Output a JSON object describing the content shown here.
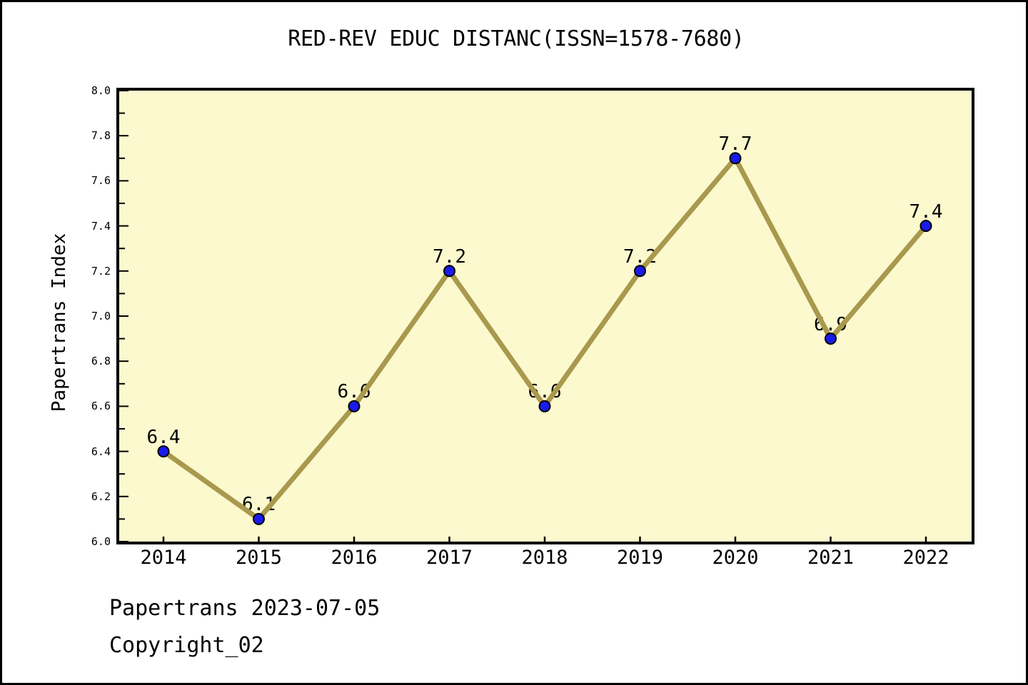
{
  "page": {
    "footer_line1": "Papertrans 2023-07-05",
    "footer_line2": "Copyright_02"
  },
  "chart_data": {
    "type": "line",
    "title": "RED-REV EDUC DISTANC(ISSN=1578-7680)",
    "xlabel": "",
    "ylabel": "Papertrans Index",
    "categories": [
      "2014",
      "2015",
      "2016",
      "2017",
      "2018",
      "2019",
      "2020",
      "2021",
      "2022"
    ],
    "series": [
      {
        "name": "Papertrans Index",
        "values": [
          6.4,
          6.1,
          6.6,
          7.2,
          6.6,
          7.2,
          7.7,
          6.9,
          7.4
        ],
        "point_labels": [
          "6.4",
          "6.1",
          "6.6",
          "7.2",
          "6.6",
          "7.2",
          "7.7",
          "6.9",
          "7.4"
        ]
      }
    ],
    "ylim": [
      6.0,
      8.0
    ],
    "y_major_step": 0.2,
    "y_minor_step": 0.1,
    "y_tick_labels": [
      "6.0",
      "6.2",
      "6.4",
      "6.6",
      "6.8",
      "7.0",
      "7.2",
      "7.4",
      "7.6",
      "7.8",
      "8.0"
    ],
    "grid": false,
    "legend_position": "none",
    "colors": {
      "plot_background": "#FCF9CE",
      "page_background": "#FFFFFF",
      "line": "#A8994E",
      "marker_fill": "#1A1AEB",
      "marker_edge": "#000000",
      "text": "#000000",
      "border": "#000000"
    }
  }
}
